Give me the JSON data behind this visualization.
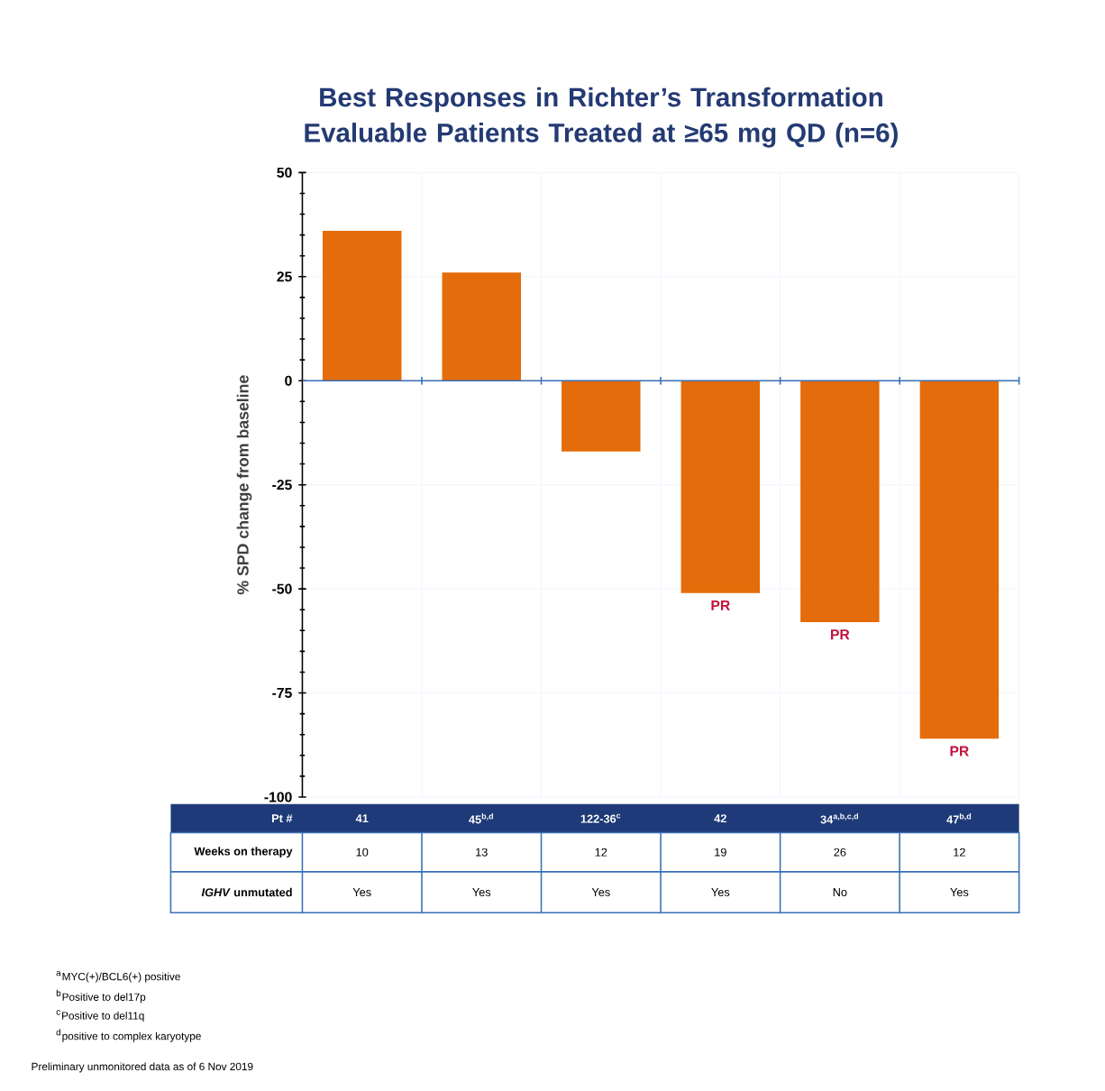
{
  "chart_data": {
    "type": "bar",
    "title": "Best Responses in Richter’s Transformation Evaluable Patients Treated at ≥65 mg QD (n=6)",
    "xlabel": "Pt #",
    "ylabel": "% SPD change from baseline",
    "categories": [
      "41",
      "45$^{b,d}$",
      "122-36$^{c}$",
      "42",
      "34$^{a,b,c,d}$",
      "47$^{b,d}$"
    ],
    "values": [
      36,
      26,
      -17,
      -51,
      -58,
      -86
    ],
    "color": "#e46c0a",
    "value_labels": [
      null,
      null,
      null,
      "PR",
      "PR",
      "PR"
    ],
    "ref_lines": [
      {
        "axis": "y",
        "value": 0,
        "color": "#3a6fb8"
      }
    ],
    "ylim": [
      -100,
      50
    ],
    "yticks": [
      -100,
      -75,
      -50,
      -25,
      0,
      25,
      50
    ],
    "grid": true,
    "annotations": [
      "Weeks on therapy",
      "10",
      "13",
      "12",
      "19",
      "26",
      "12",
      "*IGHV* unmutated",
      "Yes",
      "Yes",
      "Yes",
      "Yes",
      "No",
      "Yes",
      "$^{a}$MYC(+)/BCL6(+) positive",
      "$^{b}$Positive to del17p",
      "$^{c}$Positive to del11q",
      "$^{d}$positive to complex karyotype",
      "Preliminary unmonitored data as of 6 Nov 2019"
    ]
  }
}
